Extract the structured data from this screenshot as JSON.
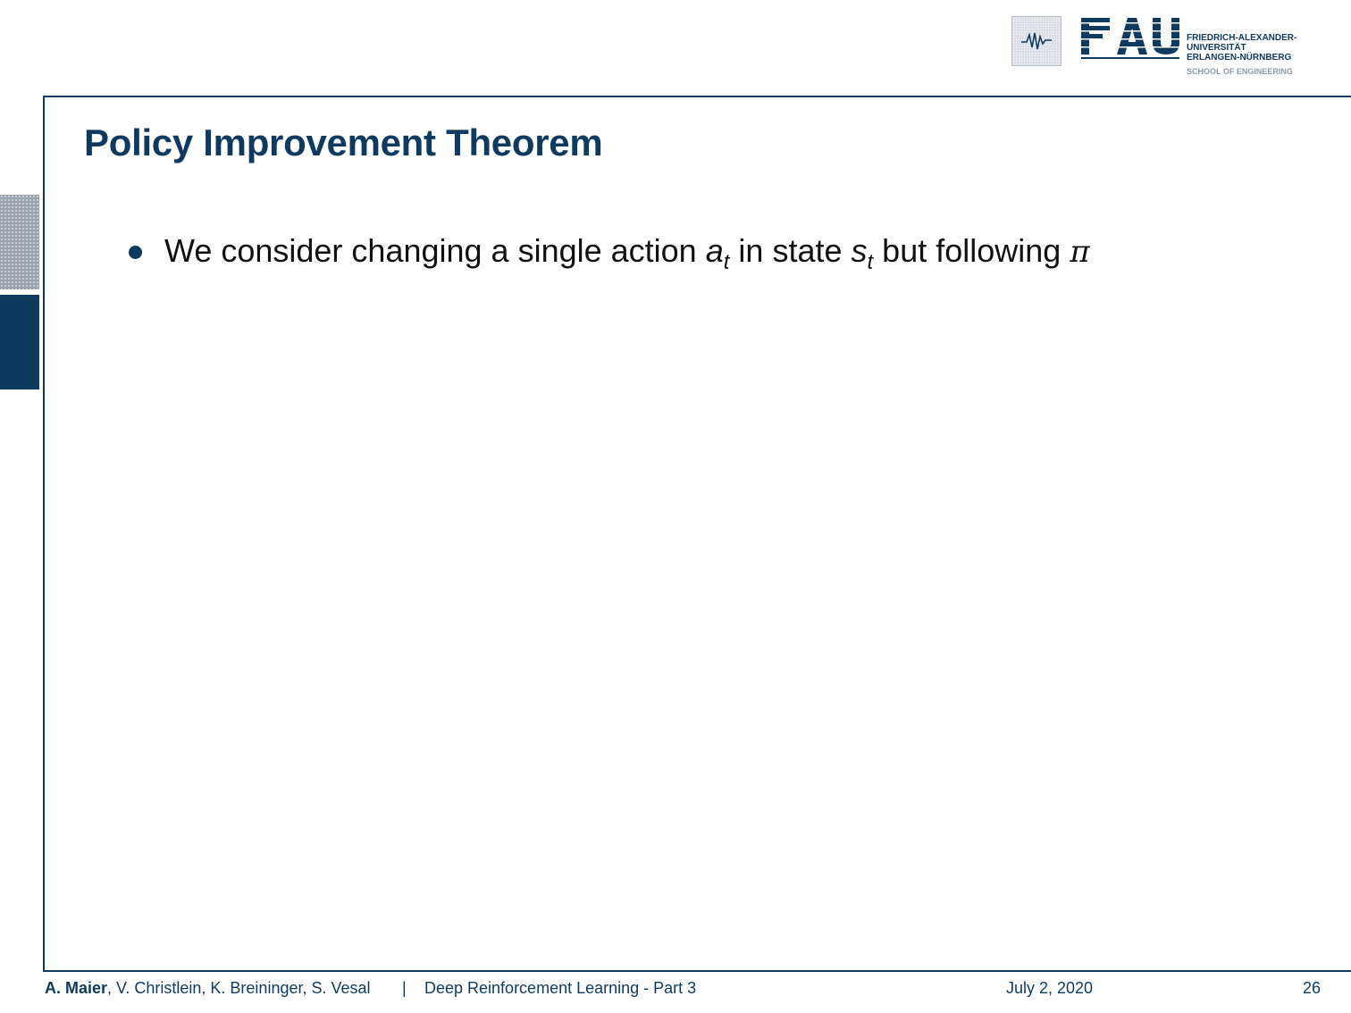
{
  "slide": {
    "title": "Policy Improvement Theorem",
    "bullets": [
      {
        "text_before": "We consider changing a single action ",
        "var_a": "a",
        "sub_a": "t",
        "text_middle": " in state ",
        "var_s": "s",
        "sub_s": "t",
        "text_after": " but following ",
        "var_pi": "π"
      }
    ]
  },
  "logo": {
    "mark": "FAU",
    "university_lines": [
      "FRIEDRICH-ALEXANDER-",
      "UNIVERSITÄT",
      "ERLANGEN-NÜRNBERG"
    ],
    "school": "SCHOOL OF ENGINEERING"
  },
  "footer": {
    "lead_author": "A. Maier",
    "other_authors": ", V. Christlein, K. Breininger, S. Vesal",
    "separator": "|",
    "course": "Deep Reinforcement Learning - Part 3",
    "date": "July 2, 2020",
    "page": "26"
  },
  "colors": {
    "primary": "#0f3a5f",
    "gray": "#9aa3ad"
  }
}
